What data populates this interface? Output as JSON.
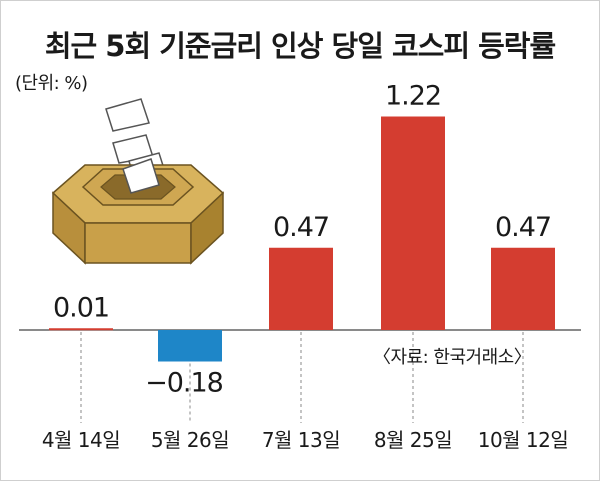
{
  "title": "최근 5회 기준금리 인상 당일 코스피 등락률",
  "unit_label": "(단위: %)",
  "source_label": "〈자료: 한국거래소〉",
  "colors": {
    "positive": "#d43d30",
    "negative": "#1e86c8",
    "baseline": "#444444",
    "guide": "#888888"
  },
  "chart_data": {
    "type": "bar",
    "title": "최근 5회 기준금리 인상 당일 코스피 등락률",
    "xlabel": "",
    "ylabel": "",
    "categories": [
      "4월 14일",
      "5월 26일",
      "7월 13일",
      "8월 25일",
      "10월 12일"
    ],
    "values": [
      0.01,
      -0.18,
      0.47,
      1.22,
      0.47
    ],
    "value_labels": [
      "0.01",
      "−0.18",
      "0.47",
      "1.22",
      "0.47"
    ],
    "ylim": [
      -0.3,
      1.35
    ],
    "grid": false,
    "legend": "none"
  }
}
